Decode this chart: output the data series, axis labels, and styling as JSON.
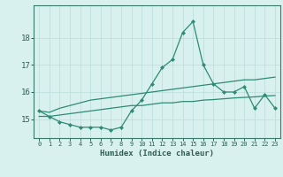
{
  "xlabel": "Humidex (Indice chaleur)",
  "ylabel": "",
  "x": [
    0,
    1,
    2,
    3,
    4,
    5,
    6,
    7,
    8,
    9,
    10,
    11,
    12,
    13,
    14,
    15,
    16,
    17,
    18,
    19,
    20,
    21,
    22,
    23
  ],
  "curve_main": [
    15.3,
    15.1,
    14.9,
    14.8,
    14.7,
    14.7,
    14.7,
    14.6,
    14.7,
    15.3,
    15.7,
    16.3,
    16.9,
    17.2,
    18.2,
    18.6,
    17.0,
    16.3,
    16.0,
    16.0,
    16.2,
    15.4,
    15.9,
    15.4
  ],
  "curve_upper": [
    15.3,
    15.25,
    15.4,
    15.5,
    15.6,
    15.7,
    15.75,
    15.8,
    15.85,
    15.9,
    15.95,
    16.0,
    16.05,
    16.1,
    16.15,
    16.2,
    16.25,
    16.3,
    16.35,
    16.4,
    16.45,
    16.45,
    16.5,
    16.55
  ],
  "curve_lower": [
    15.1,
    15.1,
    15.15,
    15.2,
    15.25,
    15.3,
    15.35,
    15.4,
    15.45,
    15.5,
    15.5,
    15.55,
    15.6,
    15.6,
    15.65,
    15.65,
    15.7,
    15.72,
    15.75,
    15.78,
    15.8,
    15.82,
    15.85,
    15.87
  ],
  "line_color": "#2e8b74",
  "bg_color": "#d8f0ee",
  "grid_color": "#b8dcd8",
  "ylim": [
    14.3,
    19.2
  ],
  "xlim": [
    -0.5,
    23.5
  ],
  "yticks": [
    15,
    16,
    17,
    18
  ],
  "xticks": [
    0,
    1,
    2,
    3,
    4,
    5,
    6,
    7,
    8,
    9,
    10,
    11,
    12,
    13,
    14,
    15,
    16,
    17,
    18,
    19,
    20,
    21,
    22,
    23
  ]
}
